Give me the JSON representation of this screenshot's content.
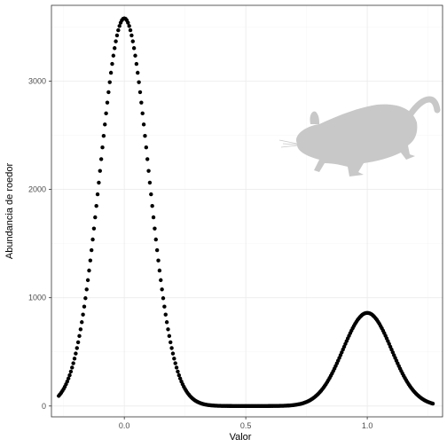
{
  "chart_data": {
    "type": "scatter",
    "xlabel": "Valor",
    "ylabel": "Abundancia de roedor",
    "xlim": [
      -0.3,
      1.31
    ],
    "ylim": [
      -100,
      3700
    ],
    "x_ticks": [
      0.0,
      0.5,
      1.0
    ],
    "x_tick_labels": [
      "0.0",
      "0.5",
      "1.0"
    ],
    "y_ticks": [
      0,
      1000,
      2000,
      3000
    ],
    "y_tick_labels": [
      "0",
      "1000",
      "2000",
      "3000"
    ],
    "grid": true,
    "series": [
      {
        "x_range": [
          -0.27,
          1.27
        ],
        "step": 0.005,
        "shape": "sum of two gaussian peaks",
        "peaks": [
          {
            "center": 0.0,
            "height": 3580,
            "sd": 0.1
          },
          {
            "center": 1.0,
            "height": 860,
            "sd": 0.1
          }
        ]
      }
    ],
    "silhouette": "rodent-silhouette-icon"
  },
  "colors": {
    "points": "#000000",
    "panel_border": "#333333",
    "grid_major": "#ebebeb",
    "grid_minor": "#f5f5f5",
    "silhouette": "#c8c8c8"
  }
}
